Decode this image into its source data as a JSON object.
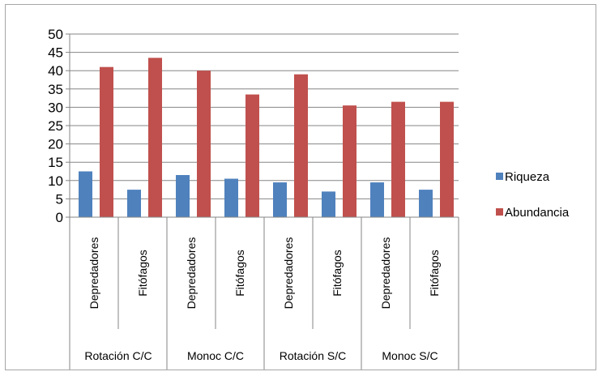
{
  "chart_data": {
    "type": "bar",
    "groups": [
      "Rotación C/C",
      "Monoc C/C",
      "Rotación S/C",
      "Monoc S/C"
    ],
    "categories": [
      "Depredadores",
      "Fitófagos",
      "Depredadores",
      "Fitófagos",
      "Depredadores",
      "Fitófagos",
      "Depredadores",
      "Fitófagos"
    ],
    "series": [
      {
        "name": "Riqueza",
        "color": "#4f81bd",
        "values": [
          12.5,
          7.5,
          11.5,
          10.5,
          9.5,
          7,
          9.5,
          7.5
        ]
      },
      {
        "name": "Abundancia",
        "color": "#c0504d",
        "values": [
          41,
          43.5,
          40,
          33.5,
          39,
          30.5,
          31.5,
          31.5
        ]
      }
    ],
    "ylim": [
      0,
      50
    ],
    "yticks": [
      "0",
      "5",
      "10",
      "15",
      "20",
      "25",
      "30",
      "35",
      "40",
      "45",
      "50"
    ],
    "grid": true,
    "legend_position": "right",
    "title": "",
    "xlabel": "",
    "ylabel": ""
  }
}
